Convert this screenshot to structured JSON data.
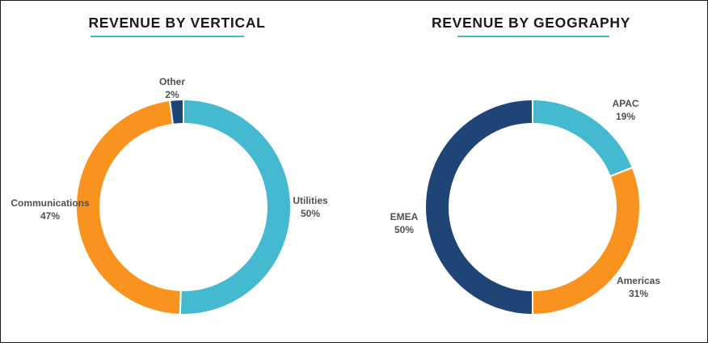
{
  "chart_data": [
    {
      "type": "pie",
      "title": "REVENUE BY VERTICAL",
      "categories": [
        "Utilities",
        "Communications",
        "Other"
      ],
      "values": [
        50,
        47,
        2
      ],
      "value_labels": [
        "50%",
        "47%",
        "2%"
      ],
      "colors": [
        "#45b9cf",
        "#f7931e",
        "#1f4576"
      ],
      "accent": "#45b9cf"
    },
    {
      "type": "pie",
      "title": "REVENUE BY GEOGRAPHY",
      "categories": [
        "APAC",
        "Americas",
        "EMEA"
      ],
      "values": [
        19,
        31,
        50
      ],
      "value_labels": [
        "19%",
        "31%",
        "50%"
      ],
      "colors": [
        "#45b9cf",
        "#f7931e",
        "#1f4576"
      ],
      "accent": "#45b9cf"
    }
  ]
}
